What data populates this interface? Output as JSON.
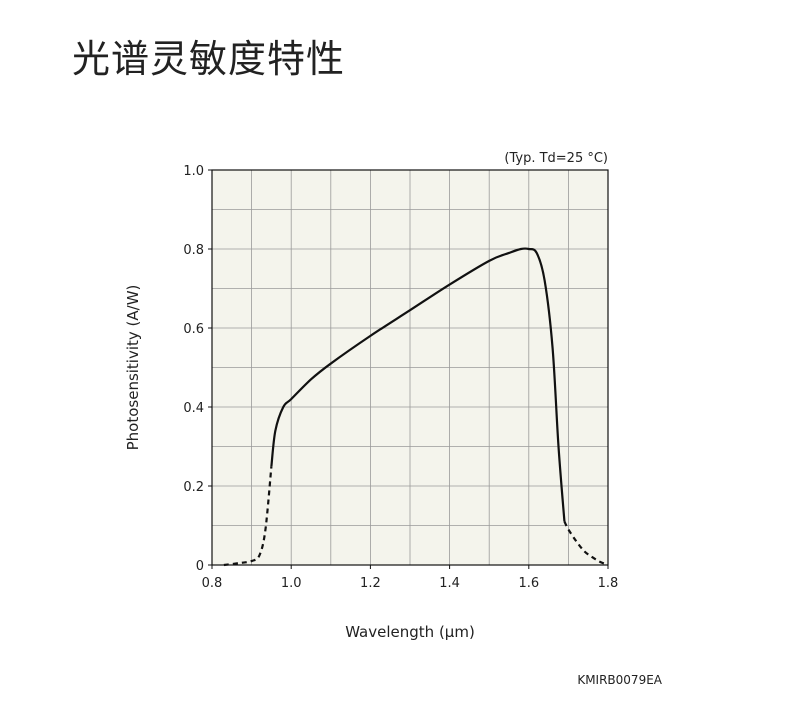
{
  "page": {
    "title": "光谱灵敏度特性"
  },
  "chart_data": {
    "type": "line",
    "condition_note": "(Typ. Td=25 °C)",
    "xlabel": "Wavelength (µm)",
    "ylabel": "Photosensitivity (A/W)",
    "xlim": [
      0.8,
      1.8
    ],
    "ylim": [
      0,
      1.0
    ],
    "x_ticks": [
      {
        "value": 0.8,
        "label": "0.8"
      },
      {
        "value": 1.0,
        "label": "1.0"
      },
      {
        "value": 1.2,
        "label": "1.2"
      },
      {
        "value": 1.4,
        "label": "1.4"
      },
      {
        "value": 1.6,
        "label": "1.6"
      },
      {
        "value": 1.8,
        "label": "1.8"
      }
    ],
    "y_ticks": [
      {
        "value": 0,
        "label": "0"
      },
      {
        "value": 0.2,
        "label": "0.2"
      },
      {
        "value": 0.4,
        "label": "0.4"
      },
      {
        "value": 0.6,
        "label": "0.6"
      },
      {
        "value": 0.8,
        "label": "0.8"
      },
      {
        "value": 1.0,
        "label": "1.0"
      }
    ],
    "grid": true,
    "grid_step": {
      "x": 0.1,
      "y": 0.1
    },
    "background_color": "#f4f4ec",
    "line_color": "#111111",
    "series": [
      {
        "style": "dashed",
        "x": [
          0.83,
          0.87,
          0.9,
          0.92,
          0.935,
          0.95
        ],
        "y": [
          0.0,
          0.005,
          0.01,
          0.025,
          0.09,
          0.25
        ]
      },
      {
        "style": "solid",
        "x": [
          0.95,
          0.96,
          0.98,
          1.0,
          1.05,
          1.1,
          1.2,
          1.3,
          1.4,
          1.5,
          1.55,
          1.58,
          1.6,
          1.62,
          1.64,
          1.66,
          1.675,
          1.69
        ],
        "y": [
          0.25,
          0.34,
          0.4,
          0.42,
          0.47,
          0.51,
          0.58,
          0.645,
          0.71,
          0.77,
          0.79,
          0.8,
          0.8,
          0.79,
          0.72,
          0.55,
          0.3,
          0.11
        ]
      },
      {
        "style": "dashed",
        "x": [
          1.69,
          1.7,
          1.72,
          1.74,
          1.76,
          1.78,
          1.8
        ],
        "y": [
          0.11,
          0.09,
          0.06,
          0.035,
          0.02,
          0.008,
          0.0
        ]
      }
    ]
  },
  "doc_code": "KMIRB0079EA"
}
